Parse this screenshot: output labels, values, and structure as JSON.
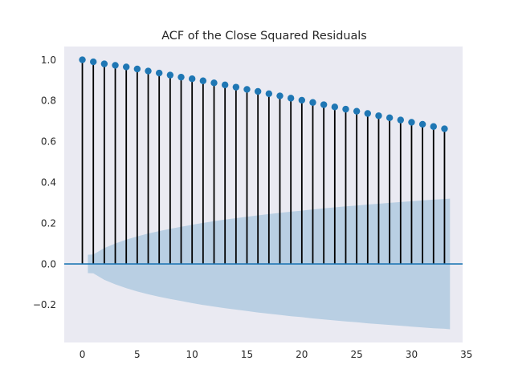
{
  "chart_data": {
    "type": "stem",
    "title": "ACF of the Close Squared Residuals",
    "xlabel": "",
    "ylabel": "",
    "xlim": [
      -1.65,
      34.65
    ],
    "ylim": [
      -0.385,
      1.065
    ],
    "x_ticks": [
      0,
      5,
      10,
      15,
      20,
      25,
      30,
      35
    ],
    "x_tick_labels": [
      "0",
      "5",
      "10",
      "15",
      "20",
      "25",
      "30",
      "35"
    ],
    "y_ticks": [
      -0.2,
      0.0,
      0.2,
      0.4,
      0.6,
      0.8,
      1.0
    ],
    "y_tick_labels": [
      "−0.2",
      "0.0",
      "0.2",
      "0.4",
      "0.6",
      "0.8",
      "1.0"
    ],
    "lags": [
      0,
      1,
      2,
      3,
      4,
      5,
      6,
      7,
      8,
      9,
      10,
      11,
      12,
      13,
      14,
      15,
      16,
      17,
      18,
      19,
      20,
      21,
      22,
      23,
      24,
      25,
      26,
      27,
      28,
      29,
      30,
      31,
      32,
      33
    ],
    "acf": [
      1.0,
      0.99,
      0.98,
      0.973,
      0.965,
      0.955,
      0.945,
      0.935,
      0.925,
      0.915,
      0.907,
      0.897,
      0.887,
      0.877,
      0.866,
      0.855,
      0.845,
      0.834,
      0.823,
      0.812,
      0.802,
      0.791,
      0.78,
      0.769,
      0.758,
      0.748,
      0.737,
      0.726,
      0.716,
      0.705,
      0.694,
      0.684,
      0.673,
      0.662
    ],
    "confidence_band": {
      "lags": [
        0.5,
        1,
        2,
        3,
        4,
        5,
        6,
        7,
        8,
        9,
        10,
        11,
        12,
        13,
        14,
        15,
        16,
        17,
        18,
        19,
        20,
        21,
        22,
        23,
        24,
        25,
        26,
        27,
        28,
        29,
        30,
        31,
        32,
        33,
        33.5
      ],
      "upper": [
        0.045,
        0.046,
        0.078,
        0.1,
        0.119,
        0.135,
        0.149,
        0.161,
        0.172,
        0.182,
        0.192,
        0.201,
        0.209,
        0.217,
        0.224,
        0.231,
        0.238,
        0.244,
        0.25,
        0.256,
        0.261,
        0.267,
        0.272,
        0.277,
        0.282,
        0.286,
        0.291,
        0.295,
        0.299,
        0.303,
        0.307,
        0.311,
        0.315,
        0.318,
        0.32
      ]
    },
    "grid": false,
    "colors": {
      "background": "#eaeaf2",
      "marker": "#1f77b4",
      "stem": "#000000",
      "band": "#b9cfe3",
      "zero_line": "#1f77b4"
    }
  }
}
